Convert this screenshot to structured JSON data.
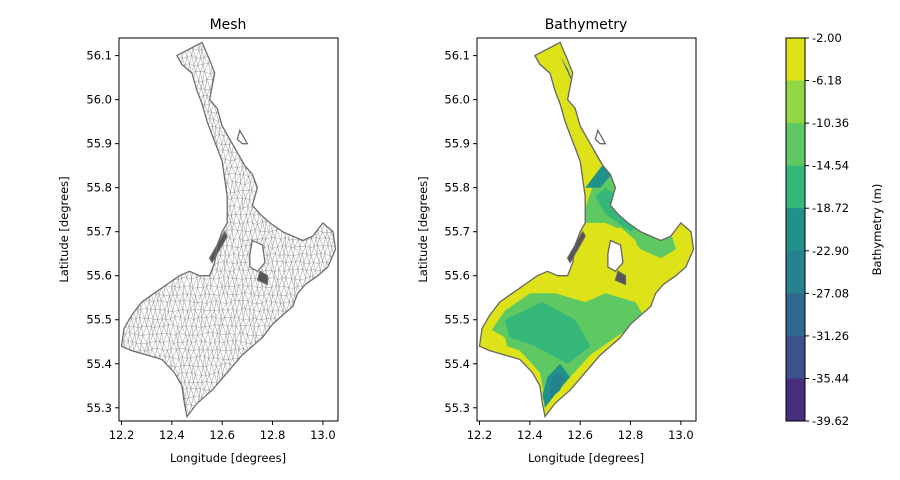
{
  "chart_data": [
    {
      "type": "mesh",
      "title": "Mesh",
      "xlabel": "Longitude [degrees]",
      "ylabel": "Latitude [degrees]",
      "xlim": [
        12.19,
        13.06
      ],
      "ylim": [
        55.27,
        56.14
      ],
      "xticks": [
        12.2,
        12.4,
        12.6,
        12.8,
        13.0
      ],
      "xtick_labels": [
        "12.2",
        "12.4",
        "12.6",
        "12.8",
        "13.0"
      ],
      "yticks": [
        55.3,
        55.4,
        55.5,
        55.6,
        55.7,
        55.8,
        55.9,
        56.0,
        56.1
      ],
      "ytick_labels": [
        "55.3",
        "55.4",
        "55.5",
        "55.6",
        "55.7",
        "55.8",
        "55.9",
        "56.0",
        "56.1"
      ],
      "mesh_color": "#8a8a8a",
      "outline_color": "#6e6e6e",
      "domain_outline": [
        [
          12.42,
          56.1
        ],
        [
          12.52,
          56.13
        ],
        [
          12.55,
          56.09
        ],
        [
          12.57,
          56.06
        ],
        [
          12.55,
          56.0
        ],
        [
          12.58,
          55.98
        ],
        [
          12.6,
          55.94
        ],
        [
          12.63,
          55.91
        ],
        [
          12.66,
          55.88
        ],
        [
          12.69,
          55.85
        ],
        [
          12.72,
          55.83
        ],
        [
          12.74,
          55.8
        ],
        [
          12.72,
          55.76
        ],
        [
          12.75,
          55.74
        ],
        [
          12.79,
          55.72
        ],
        [
          12.84,
          55.7
        ],
        [
          12.88,
          55.69
        ],
        [
          12.92,
          55.68
        ],
        [
          12.96,
          55.69
        ],
        [
          13.0,
          55.72
        ],
        [
          13.04,
          55.7
        ],
        [
          13.05,
          55.66
        ],
        [
          13.02,
          55.62
        ],
        [
          12.98,
          55.6
        ],
        [
          12.93,
          55.58
        ],
        [
          12.9,
          55.56
        ],
        [
          12.88,
          55.53
        ],
        [
          12.84,
          55.51
        ],
        [
          12.8,
          55.49
        ],
        [
          12.76,
          55.46
        ],
        [
          12.72,
          55.44
        ],
        [
          12.68,
          55.42
        ],
        [
          12.62,
          55.38
        ],
        [
          12.56,
          55.34
        ],
        [
          12.5,
          55.31
        ],
        [
          12.46,
          55.28
        ],
        [
          12.45,
          55.31
        ],
        [
          12.44,
          55.35
        ],
        [
          12.41,
          55.38
        ],
        [
          12.36,
          55.41
        ],
        [
          12.3,
          55.42
        ],
        [
          12.24,
          55.43
        ],
        [
          12.2,
          55.44
        ],
        [
          12.21,
          55.48
        ],
        [
          12.24,
          55.51
        ],
        [
          12.28,
          55.54
        ],
        [
          12.33,
          55.56
        ],
        [
          12.38,
          55.58
        ],
        [
          12.43,
          55.6
        ],
        [
          12.47,
          55.61
        ],
        [
          12.51,
          55.6
        ],
        [
          12.55,
          55.6
        ],
        [
          12.57,
          55.63
        ],
        [
          12.58,
          55.67
        ],
        [
          12.6,
          55.7
        ],
        [
          12.62,
          55.72
        ],
        [
          12.62,
          55.78
        ],
        [
          12.61,
          55.82
        ],
        [
          12.6,
          55.86
        ],
        [
          12.58,
          55.89
        ],
        [
          12.56,
          55.92
        ],
        [
          12.54,
          55.95
        ],
        [
          12.52,
          55.99
        ],
        [
          12.5,
          56.02
        ],
        [
          12.48,
          56.06
        ],
        [
          12.44,
          56.08
        ]
      ],
      "islands": [
        [
          [
            12.67,
            55.93
          ],
          [
            12.69,
            55.91
          ],
          [
            12.7,
            55.9
          ],
          [
            12.68,
            55.9
          ],
          [
            12.66,
            55.91
          ]
        ],
        [
          [
            12.72,
            55.68
          ],
          [
            12.76,
            55.67
          ],
          [
            12.77,
            55.63
          ],
          [
            12.74,
            55.61
          ],
          [
            12.71,
            55.62
          ],
          [
            12.71,
            55.65
          ]
        ]
      ],
      "slivers": [
        [
          [
            12.56,
            55.63
          ],
          [
            12.59,
            55.66
          ],
          [
            12.62,
            55.69
          ],
          [
            12.61,
            55.7
          ],
          [
            12.58,
            55.67
          ],
          [
            12.55,
            55.64
          ]
        ],
        [
          [
            12.74,
            55.59
          ],
          [
            12.78,
            55.58
          ],
          [
            12.78,
            55.6
          ],
          [
            12.75,
            55.61
          ]
        ]
      ]
    },
    {
      "type": "filled-contour",
      "title": "Bathymetry",
      "xlabel": "Longitude [degrees]",
      "ylabel": "Latitude [degrees]",
      "xlim": [
        12.19,
        13.06
      ],
      "ylim": [
        55.27,
        56.14
      ],
      "xticks": [
        12.2,
        12.4,
        12.6,
        12.8,
        13.0
      ],
      "xtick_labels": [
        "12.2",
        "12.4",
        "12.6",
        "12.8",
        "13.0"
      ],
      "yticks": [
        55.3,
        55.4,
        55.5,
        55.6,
        55.7,
        55.8,
        55.9,
        56.0,
        56.1
      ],
      "ytick_labels": [
        "55.3",
        "55.4",
        "55.5",
        "55.6",
        "55.7",
        "55.8",
        "55.9",
        "56.0",
        "56.1"
      ],
      "depth_regions": [
        {
          "level": 6,
          "shape": [
            [
              12.3,
              55.5
            ],
            [
              12.45,
              55.54
            ],
            [
              12.58,
              55.5
            ],
            [
              12.64,
              55.44
            ],
            [
              12.55,
              55.4
            ],
            [
              12.42,
              55.44
            ],
            [
              12.32,
              55.46
            ]
          ]
        },
        {
          "level": 6,
          "shape": [
            [
              12.7,
              55.8
            ],
            [
              12.8,
              55.76
            ],
            [
              12.86,
              55.72
            ],
            [
              12.8,
              55.7
            ],
            [
              12.7,
              55.74
            ],
            [
              12.66,
              55.78
            ]
          ]
        },
        {
          "level": 5,
          "shape": [
            [
              12.46,
              55.3
            ],
            [
              12.5,
              55.33
            ],
            [
              12.56,
              55.37
            ],
            [
              12.52,
              55.4
            ],
            [
              12.47,
              55.37
            ],
            [
              12.45,
              55.33
            ]
          ]
        },
        {
          "level": 5,
          "shape": [
            [
              12.62,
              55.8
            ],
            [
              12.7,
              55.86
            ],
            [
              12.76,
              55.9
            ],
            [
              12.74,
              55.84
            ],
            [
              12.68,
              55.8
            ]
          ]
        },
        {
          "level": 4,
          "shape": [
            [
              12.48,
              55.32
            ],
            [
              12.52,
              55.34
            ],
            [
              12.54,
              55.37
            ],
            [
              12.5,
              55.38
            ],
            [
              12.48,
              55.35
            ]
          ]
        },
        {
          "level": 3,
          "shape": [
            [
              12.52,
              56.1
            ],
            [
              12.56,
              56.05
            ],
            [
              12.62,
              55.98
            ],
            [
              12.7,
              55.92
            ],
            [
              12.76,
              55.86
            ],
            [
              12.74,
              55.9
            ],
            [
              12.66,
              55.95
            ],
            [
              12.6,
              56.0
            ],
            [
              12.55,
              56.07
            ]
          ]
        },
        {
          "level": 1,
          "shape": [
            [
              12.56,
              56.01
            ],
            [
              12.6,
              55.97
            ],
            [
              12.66,
              55.94
            ],
            [
              12.7,
              55.91
            ],
            [
              12.75,
              55.88
            ],
            [
              12.74,
              55.86
            ],
            [
              12.69,
              55.89
            ],
            [
              12.63,
              55.94
            ],
            [
              12.58,
              55.99
            ]
          ]
        }
      ],
      "shallow_regions": [
        {
          "level": 9,
          "shape": [
            [
              12.7,
              55.7
            ],
            [
              12.74,
              55.66
            ],
            [
              12.8,
              55.64
            ],
            [
              12.85,
              55.62
            ],
            [
              12.82,
              55.68
            ],
            [
              12.76,
              55.71
            ]
          ]
        },
        {
          "level": 9,
          "shape": [
            [
              12.2,
              55.45
            ],
            [
              12.25,
              55.43
            ],
            [
              12.32,
              55.42
            ],
            [
              12.3,
              55.46
            ],
            [
              12.24,
              55.48
            ]
          ]
        },
        {
          "level": 9,
          "shape": [
            [
              12.55,
              55.92
            ],
            [
              12.58,
              55.88
            ],
            [
              12.61,
              55.84
            ],
            [
              12.62,
              55.8
            ],
            [
              12.6,
              55.82
            ],
            [
              12.56,
              55.88
            ],
            [
              12.53,
              55.94
            ]
          ]
        },
        {
          "level": 9,
          "shape": [
            [
              12.42,
              56.1
            ],
            [
              12.48,
              56.11
            ],
            [
              12.5,
              56.08
            ],
            [
              12.46,
              56.08
            ]
          ]
        },
        {
          "level": 9,
          "shape": [
            [
              12.88,
              55.56
            ],
            [
              12.92,
              55.58
            ],
            [
              12.96,
              55.6
            ],
            [
              12.92,
              55.61
            ],
            [
              12.88,
              55.59
            ]
          ]
        }
      ]
    }
  ],
  "colorbar": {
    "label": "Bathymetry (m)",
    "tick_labels": [
      "-2.00",
      "-6.18",
      "-10.36",
      "-14.54",
      "-18.72",
      "-22.90",
      "-27.08",
      "-31.26",
      "-35.44",
      "-39.62"
    ],
    "band_colors": [
      "#dde318",
      "#90d743",
      "#5ec962",
      "#35b779",
      "#21918c",
      "#26828e",
      "#31688e",
      "#3b528b",
      "#472d7b",
      "#440154"
    ]
  }
}
